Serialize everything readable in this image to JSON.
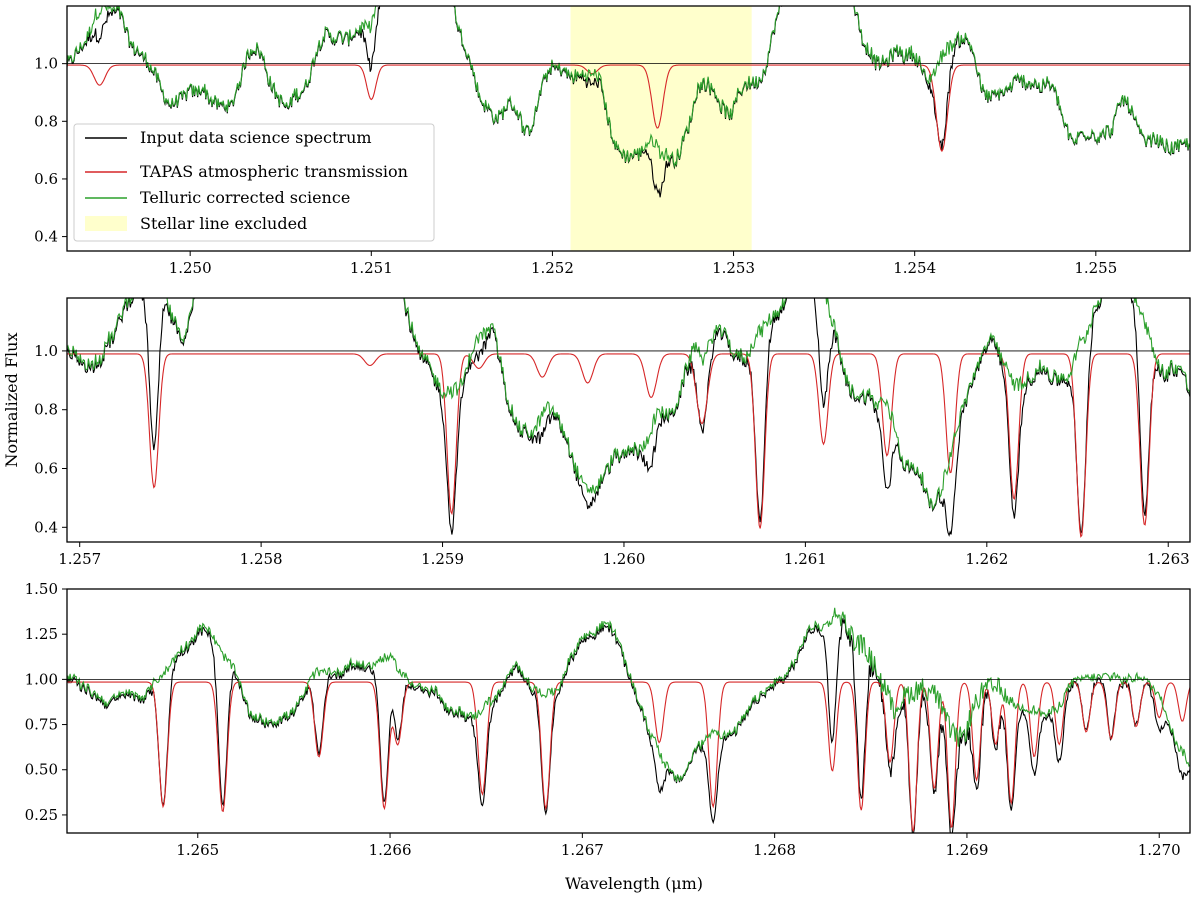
{
  "figure": {
    "ylabel": "Normalized Flux",
    "xlabel": "Wavelength (μm)"
  },
  "colors": {
    "input": "#000000",
    "tapas": "#d62728",
    "corrected": "#2ca02c",
    "highlight": "#ffffcc",
    "reference": "#000000"
  },
  "legend": {
    "input": "Input data science spectrum",
    "tapas": "TAPAS atmospheric transmission",
    "corrected": "Telluric corrected science",
    "excluded": "Stellar line excluded"
  },
  "chart_data": [
    {
      "type": "line",
      "xlim": [
        1.24932,
        1.25552
      ],
      "ylim": [
        0.35,
        1.2
      ],
      "xticks": [
        "1.250",
        "1.251",
        "1.252",
        "1.253",
        "1.254",
        "1.255"
      ],
      "yticks": [
        "0.4",
        "0.6",
        "0.8",
        "1.0"
      ],
      "excluded_region": [
        1.2521,
        1.2531
      ],
      "reference_line": 1.0,
      "tapas_lines": [
        {
          "x": 1.2495,
          "depth": 0.07,
          "width": 3e-05
        },
        {
          "x": 1.251,
          "depth": 0.12,
          "width": 2.5e-05
        },
        {
          "x": 1.25222,
          "depth": 0.03,
          "width": 3e-05
        },
        {
          "x": 1.25258,
          "depth": 0.22,
          "width": 3e-05
        },
        {
          "x": 1.25415,
          "depth": 0.3,
          "width": 3e-05
        }
      ],
      "stellar_lines": [
        {
          "x": 1.25028,
          "depth": 0.12,
          "width": 0.00015
        },
        {
          "x": 1.25259,
          "depth": 0.37,
          "width": 0.00018
        },
        {
          "x": 1.25385,
          "depth": 0.05,
          "width": 0.0002
        }
      ],
      "series": [
        {
          "name": "Input data science spectrum",
          "baseline": 1.0
        },
        {
          "name": "TAPAS atmospheric transmission",
          "baseline": 0.995
        },
        {
          "name": "Telluric corrected science",
          "baseline": 1.0
        }
      ]
    },
    {
      "type": "line",
      "xlim": [
        1.25693,
        1.26312
      ],
      "ylim": [
        0.35,
        1.18
      ],
      "xticks": [
        "1.257",
        "1.258",
        "1.259",
        "1.260",
        "1.261",
        "1.262",
        "1.263"
      ],
      "yticks": [
        "0.4",
        "0.6",
        "0.8",
        "1.0"
      ],
      "reference_line": 1.0,
      "tapas_lines": [
        {
          "x": 1.25741,
          "depth": 0.46,
          "width": 2.5e-05
        },
        {
          "x": 1.2586,
          "depth": 0.04,
          "width": 3e-05
        },
        {
          "x": 1.25905,
          "depth": 0.55,
          "width": 2.5e-05
        },
        {
          "x": 1.2592,
          "depth": 0.05,
          "width": 3e-05
        },
        {
          "x": 1.25955,
          "depth": 0.08,
          "width": 3e-05
        },
        {
          "x": 1.2598,
          "depth": 0.1,
          "width": 3e-05
        },
        {
          "x": 1.26015,
          "depth": 0.15,
          "width": 3e-05
        },
        {
          "x": 1.26043,
          "depth": 0.24,
          "width": 3e-05
        },
        {
          "x": 1.26075,
          "depth": 0.6,
          "width": 2.5e-05
        },
        {
          "x": 1.2611,
          "depth": 0.31,
          "width": 2.5e-05
        },
        {
          "x": 1.26145,
          "depth": 0.35,
          "width": 2.5e-05
        },
        {
          "x": 1.2618,
          "depth": 0.41,
          "width": 2.5e-05
        },
        {
          "x": 1.26215,
          "depth": 0.5,
          "width": 2.5e-05
        },
        {
          "x": 1.26252,
          "depth": 0.63,
          "width": 2.5e-05
        },
        {
          "x": 1.26287,
          "depth": 0.59,
          "width": 2.5e-05
        }
      ],
      "series": [
        {
          "name": "Input data science spectrum",
          "baseline": 1.0
        },
        {
          "name": "TAPAS atmospheric transmission",
          "baseline": 0.99
        },
        {
          "name": "Telluric corrected science",
          "baseline": 1.01
        }
      ]
    },
    {
      "type": "line",
      "xlim": [
        1.26432,
        1.27016
      ],
      "ylim": [
        0.15,
        1.5
      ],
      "xticks": [
        "1.265",
        "1.266",
        "1.267",
        "1.268",
        "1.269",
        "1.270"
      ],
      "yticks": [
        "0.25",
        "0.50",
        "0.75",
        "1.00",
        "1.25",
        "1.50"
      ],
      "reference_line": 1.0,
      "tapas_lines": [
        {
          "x": 1.26482,
          "depth": 0.7,
          "width": 2.2e-05
        },
        {
          "x": 1.26513,
          "depth": 0.73,
          "width": 2.2e-05
        },
        {
          "x": 1.26563,
          "depth": 0.42,
          "width": 2.2e-05
        },
        {
          "x": 1.26597,
          "depth": 0.71,
          "width": 2.2e-05
        },
        {
          "x": 1.26604,
          "depth": 0.35,
          "width": 2.2e-05
        },
        {
          "x": 1.26648,
          "depth": 0.63,
          "width": 2.2e-05
        },
        {
          "x": 1.26681,
          "depth": 0.71,
          "width": 2.2e-05
        },
        {
          "x": 1.2674,
          "depth": 0.34,
          "width": 2.2e-05
        },
        {
          "x": 1.26768,
          "depth": 0.7,
          "width": 2.2e-05
        },
        {
          "x": 1.2683,
          "depth": 0.5,
          "width": 2e-05
        },
        {
          "x": 1.26845,
          "depth": 0.72,
          "width": 2e-05
        },
        {
          "x": 1.2686,
          "depth": 0.45,
          "width": 2e-05
        },
        {
          "x": 1.26872,
          "depth": 0.84,
          "width": 2e-05
        },
        {
          "x": 1.26883,
          "depth": 0.6,
          "width": 2e-05
        },
        {
          "x": 1.26892,
          "depth": 0.82,
          "width": 2e-05
        },
        {
          "x": 1.26905,
          "depth": 0.55,
          "width": 2e-05
        },
        {
          "x": 1.26915,
          "depth": 0.35,
          "width": 2e-05
        },
        {
          "x": 1.26923,
          "depth": 0.68,
          "width": 2e-05
        },
        {
          "x": 1.26935,
          "depth": 0.42,
          "width": 2e-05
        },
        {
          "x": 1.26948,
          "depth": 0.35,
          "width": 2e-05
        },
        {
          "x": 1.26962,
          "depth": 0.28,
          "width": 2e-05
        },
        {
          "x": 1.26975,
          "depth": 0.32,
          "width": 2e-05
        },
        {
          "x": 1.26988,
          "depth": 0.25,
          "width": 2e-05
        },
        {
          "x": 1.27,
          "depth": 0.2,
          "width": 2e-05
        },
        {
          "x": 1.27012,
          "depth": 0.22,
          "width": 2e-05
        }
      ],
      "series": [
        {
          "name": "Input data science spectrum",
          "baseline": 1.0
        },
        {
          "name": "TAPAS atmospheric transmission",
          "baseline": 0.985
        },
        {
          "name": "Telluric corrected science",
          "baseline": 1.02
        }
      ]
    }
  ]
}
